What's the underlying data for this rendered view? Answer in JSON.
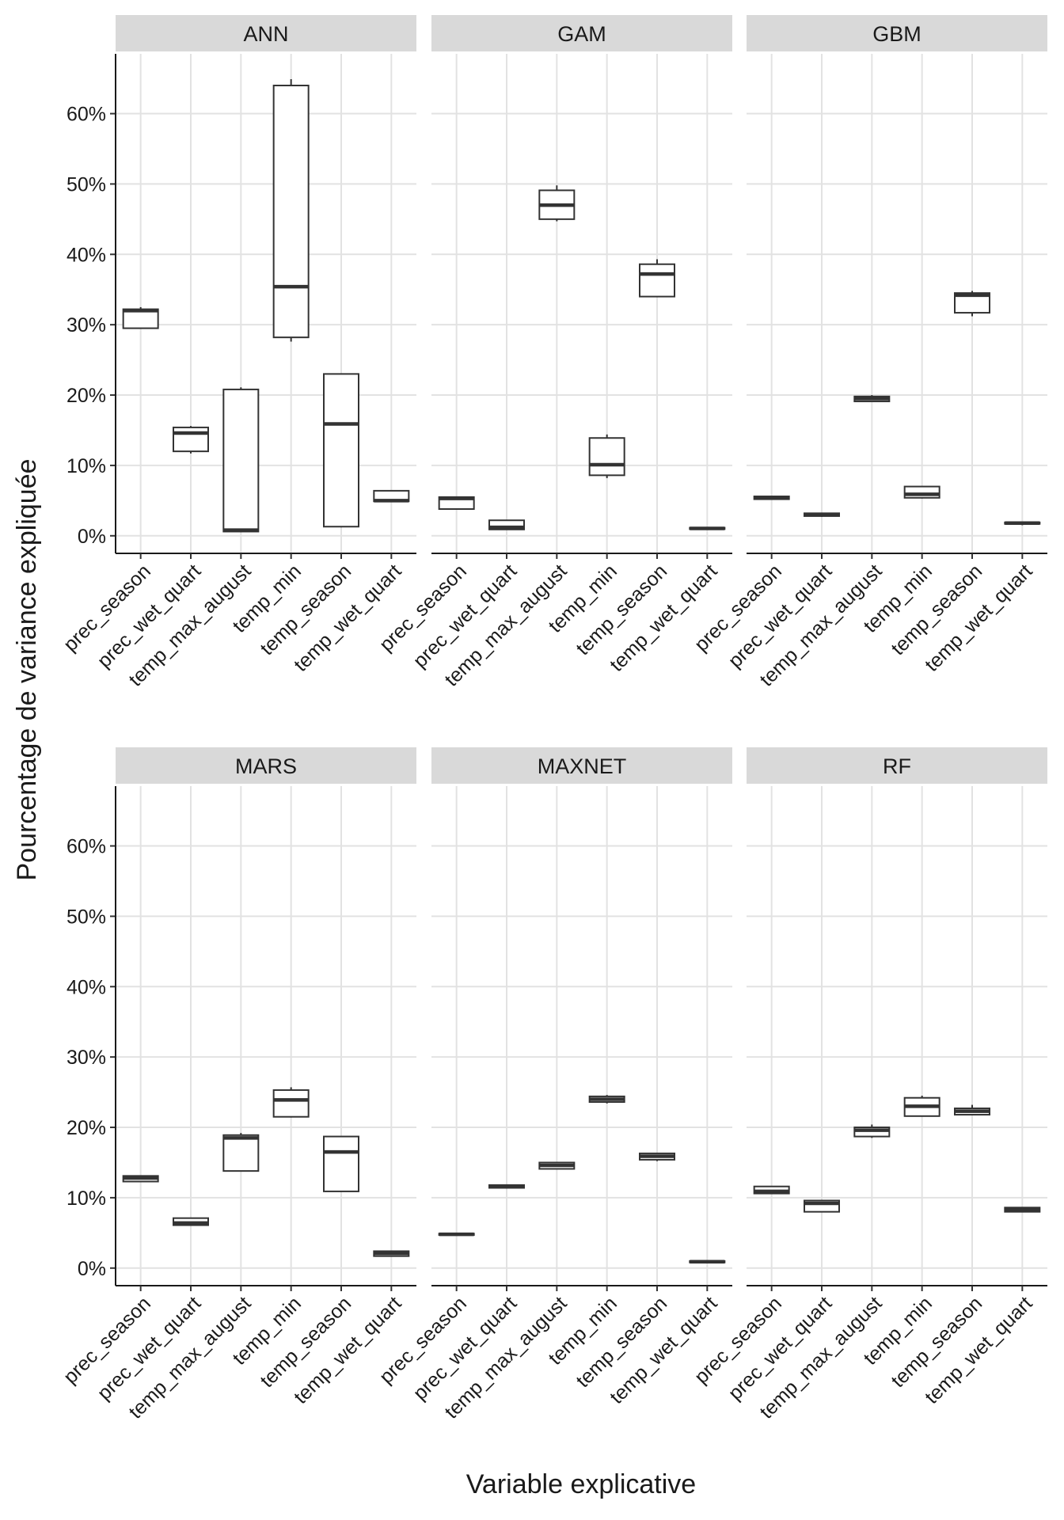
{
  "chart_data": {
    "type": "boxplot",
    "facet_layout": "2 rows x 3 columns",
    "xlabel": "Variable explicative",
    "ylabel": "Pourcentage de variance expliquée",
    "ylim": [
      -2.5,
      68.5
    ],
    "yticks": [
      0,
      10,
      20,
      30,
      40,
      50,
      60
    ],
    "ytick_labels": [
      "0%",
      "10%",
      "20%",
      "30%",
      "40%",
      "50%",
      "60%"
    ],
    "grid": true,
    "categories": [
      "prec_season",
      "prec_wet_quart",
      "temp_max_august",
      "temp_min",
      "temp_season",
      "temp_wet_quart"
    ],
    "panels": [
      {
        "title": "ANN",
        "boxes": [
          {
            "min": 29.5,
            "q1": 29.5,
            "median": 32.0,
            "q3": 32.2,
            "max": 32.5
          },
          {
            "min": 11.7,
            "q1": 12.0,
            "median": 14.6,
            "q3": 15.4,
            "max": 15.6
          },
          {
            "min": 0.5,
            "q1": 0.6,
            "median": 0.8,
            "q3": 20.8,
            "max": 21.1
          },
          {
            "min": 27.6,
            "q1": 28.2,
            "median": 35.4,
            "q3": 64.0,
            "max": 64.9
          },
          {
            "min": 1.2,
            "q1": 1.3,
            "median": 15.9,
            "q3": 23.0,
            "max": 23.1
          },
          {
            "min": 4.9,
            "q1": 4.9,
            "median": 5.0,
            "q3": 6.4,
            "max": 6.4
          }
        ]
      },
      {
        "title": "GAM",
        "boxes": [
          {
            "min": 3.8,
            "q1": 3.8,
            "median": 5.3,
            "q3": 5.5,
            "max": 5.5
          },
          {
            "min": 0.9,
            "q1": 0.9,
            "median": 1.2,
            "q3": 2.2,
            "max": 2.2
          },
          {
            "min": 44.7,
            "q1": 45.0,
            "median": 47.0,
            "q3": 49.1,
            "max": 49.8
          },
          {
            "min": 8.2,
            "q1": 8.6,
            "median": 10.1,
            "q3": 13.9,
            "max": 14.4
          },
          {
            "min": 34.0,
            "q1": 34.0,
            "median": 37.2,
            "q3": 38.6,
            "max": 39.3
          },
          {
            "min": 0.9,
            "q1": 0.95,
            "median": 1.05,
            "q3": 1.15,
            "max": 1.2
          }
        ]
      },
      {
        "title": "GBM",
        "boxes": [
          {
            "min": 5.2,
            "q1": 5.2,
            "median": 5.4,
            "q3": 5.6,
            "max": 5.6
          },
          {
            "min": 2.7,
            "q1": 2.8,
            "median": 3.0,
            "q3": 3.2,
            "max": 3.2
          },
          {
            "min": 19.0,
            "q1": 19.1,
            "median": 19.5,
            "q3": 19.8,
            "max": 20.0
          },
          {
            "min": 5.3,
            "q1": 5.4,
            "median": 5.9,
            "q3": 7.0,
            "max": 7.0
          },
          {
            "min": 31.2,
            "q1": 31.7,
            "median": 34.2,
            "q3": 34.5,
            "max": 34.8
          },
          {
            "min": 1.5,
            "q1": 1.7,
            "median": 1.8,
            "q3": 1.9,
            "max": 2.0
          }
        ]
      },
      {
        "title": "MARS",
        "boxes": [
          {
            "min": 12.3,
            "q1": 12.3,
            "median": 12.8,
            "q3": 13.1,
            "max": 13.1
          },
          {
            "min": 6.0,
            "q1": 6.1,
            "median": 6.4,
            "q3": 7.1,
            "max": 7.1
          },
          {
            "min": 13.8,
            "q1": 13.8,
            "median": 18.5,
            "q3": 18.9,
            "max": 19.2
          },
          {
            "min": 21.4,
            "q1": 21.5,
            "median": 23.9,
            "q3": 25.3,
            "max": 25.7
          },
          {
            "min": 10.9,
            "q1": 10.9,
            "median": 16.5,
            "q3": 18.7,
            "max": 18.7
          },
          {
            "min": 1.7,
            "q1": 1.7,
            "median": 2.1,
            "q3": 2.4,
            "max": 2.5
          }
        ]
      },
      {
        "title": "MAXNET",
        "boxes": [
          {
            "min": 4.6,
            "q1": 4.7,
            "median": 4.8,
            "q3": 4.9,
            "max": 5.0
          },
          {
            "min": 11.3,
            "q1": 11.4,
            "median": 11.6,
            "q3": 11.8,
            "max": 11.9
          },
          {
            "min": 14.1,
            "q1": 14.1,
            "median": 14.6,
            "q3": 15.0,
            "max": 15.0
          },
          {
            "min": 23.4,
            "q1": 23.6,
            "median": 24.0,
            "q3": 24.4,
            "max": 24.6
          },
          {
            "min": 15.2,
            "q1": 15.4,
            "median": 15.9,
            "q3": 16.3,
            "max": 16.3
          },
          {
            "min": 0.7,
            "q1": 0.8,
            "median": 0.9,
            "q3": 1.0,
            "max": 1.1
          }
        ]
      },
      {
        "title": "RF",
        "boxes": [
          {
            "min": 10.6,
            "q1": 10.6,
            "median": 10.9,
            "q3": 11.6,
            "max": 11.6
          },
          {
            "min": 8.0,
            "q1": 8.0,
            "median": 9.2,
            "q3": 9.6,
            "max": 9.6
          },
          {
            "min": 18.5,
            "q1": 18.7,
            "median": 19.6,
            "q3": 20.0,
            "max": 20.4
          },
          {
            "min": 21.6,
            "q1": 21.6,
            "median": 23.0,
            "q3": 24.2,
            "max": 24.5
          },
          {
            "min": 21.7,
            "q1": 21.8,
            "median": 22.3,
            "q3": 22.7,
            "max": 23.2
          },
          {
            "min": 8.0,
            "q1": 8.0,
            "median": 8.3,
            "q3": 8.6,
            "max": 8.6
          }
        ]
      }
    ]
  }
}
